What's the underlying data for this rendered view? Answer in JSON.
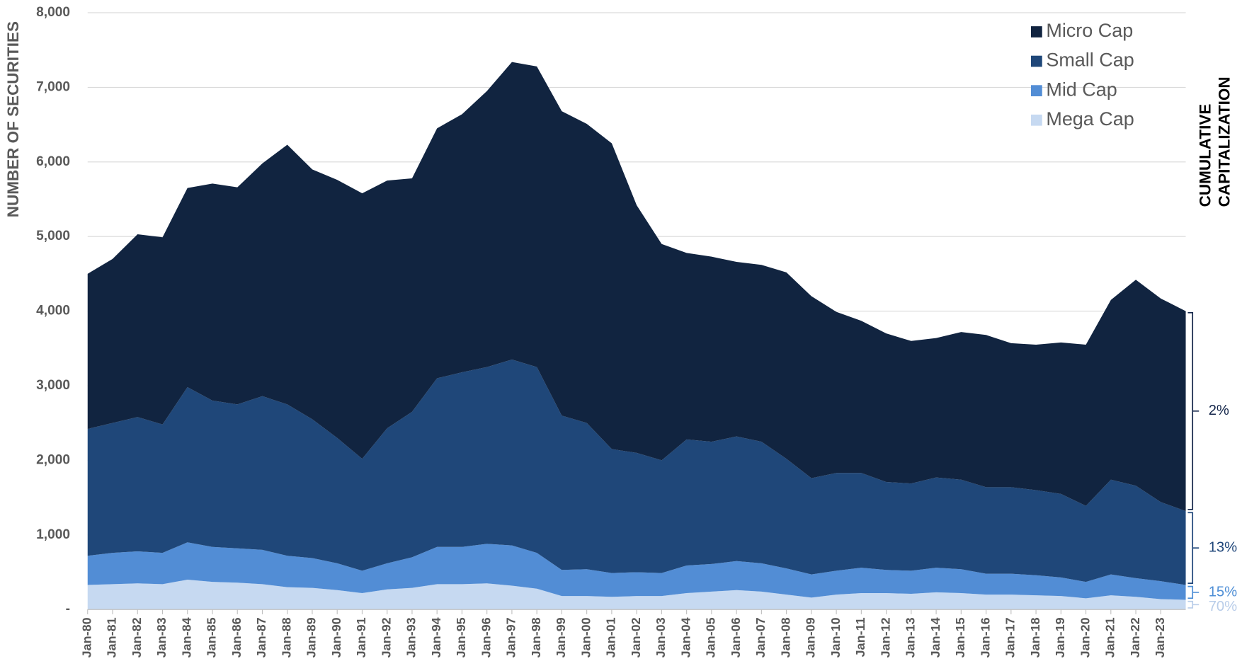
{
  "chart_data": {
    "type": "stacked-area",
    "y_axis_label": "NUMBER OF SECURITIES",
    "categories": [
      "Jan-80",
      "Jan-81",
      "Jan-82",
      "Jan-83",
      "Jan-84",
      "Jan-85",
      "Jan-86",
      "Jan-87",
      "Jan-88",
      "Jan-89",
      "Jan-90",
      "Jan-91",
      "Jan-92",
      "Jan-93",
      "Jan-94",
      "Jan-95",
      "Jan-96",
      "Jan-97",
      "Jan-98",
      "Jan-99",
      "Jan-00",
      "Jan-01",
      "Jan-02",
      "Jan-03",
      "Jan-04",
      "Jan-05",
      "Jan-06",
      "Jan-07",
      "Jan-08",
      "Jan-09",
      "Jan-10",
      "Jan-11",
      "Jan-12",
      "Jan-13",
      "Jan-14",
      "Jan-15",
      "Jan-16",
      "Jan-17",
      "Jan-18",
      "Jan-19",
      "Jan-20",
      "Jan-21",
      "Jan-22",
      "Jan-23",
      null
    ],
    "series": [
      {
        "name": "Micro Cap",
        "color": "#112440",
        "values": [
          2080,
          2200,
          2450,
          2510,
          2670,
          2910,
          2910,
          3120,
          3480,
          3350,
          3460,
          3560,
          3320,
          3130,
          3350,
          3460,
          3700,
          3990,
          4030,
          4080,
          4010,
          4100,
          3320,
          2900,
          2500,
          2480,
          2340,
          2370,
          2500,
          2440,
          2160,
          2040,
          1990,
          1910,
          1870,
          1980,
          2040,
          1930,
          1950,
          2030,
          2160,
          2410,
          2760,
          2730,
          2680
        ]
      },
      {
        "name": "Small Cap",
        "color": "#1f4779",
        "values": [
          1700,
          1740,
          1800,
          1720,
          2080,
          1960,
          1930,
          2060,
          2030,
          1860,
          1680,
          1500,
          1810,
          1950,
          2260,
          2340,
          2370,
          2490,
          2490,
          2070,
          1960,
          1660,
          1600,
          1510,
          1690,
          1640,
          1670,
          1630,
          1470,
          1290,
          1310,
          1270,
          1180,
          1170,
          1210,
          1200,
          1160,
          1160,
          1140,
          1120,
          1020,
          1270,
          1240,
          1060,
          990
        ]
      },
      {
        "name": "Mid Cap",
        "color": "#528dd5",
        "values": [
          390,
          420,
          430,
          420,
          500,
          470,
          460,
          460,
          420,
          400,
          360,
          300,
          350,
          410,
          500,
          500,
          530,
          540,
          480,
          350,
          360,
          320,
          320,
          310,
          370,
          370,
          390,
          380,
          350,
          310,
          320,
          340,
          310,
          310,
          330,
          320,
          280,
          280,
          270,
          250,
          220,
          280,
          250,
          240,
          200
        ]
      },
      {
        "name": "Mega Cap",
        "color": "#c6d9f1",
        "values": [
          330,
          340,
          350,
          340,
          400,
          370,
          360,
          340,
          300,
          290,
          260,
          220,
          270,
          290,
          340,
          340,
          350,
          320,
          280,
          180,
          180,
          170,
          180,
          180,
          220,
          240,
          260,
          240,
          200,
          160,
          200,
          220,
          220,
          210,
          230,
          220,
          200,
          200,
          190,
          180,
          150,
          190,
          170,
          140,
          130
        ]
      }
    ],
    "ylim": [
      0,
      8000
    ],
    "yticks": [
      {
        "value": 0,
        "label": "-"
      },
      {
        "value": 1000,
        "label": "1,000"
      },
      {
        "value": 2000,
        "label": "2,000"
      },
      {
        "value": 3000,
        "label": "3,000"
      },
      {
        "value": 4000,
        "label": "4,000"
      },
      {
        "value": 5000,
        "label": "5,000"
      },
      {
        "value": 6000,
        "label": "6,000"
      },
      {
        "value": 7000,
        "label": "7,000"
      },
      {
        "value": 8000,
        "label": "8,000"
      }
    ],
    "grid": true,
    "legend": "top-right",
    "capitalization_title": "CUMULATIVE CAPITALIZATION",
    "capitalization_labels": [
      "2%",
      "13%",
      "15%",
      "70%"
    ]
  }
}
